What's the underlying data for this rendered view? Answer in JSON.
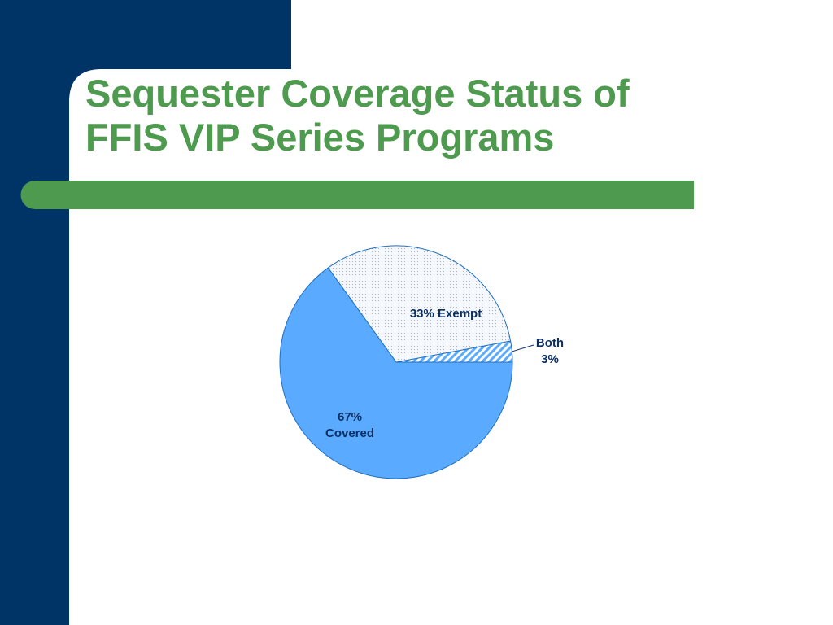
{
  "chart_data": {
    "type": "pie",
    "title": "Sequester Coverage Status of\nFFIS VIP Series Programs",
    "categories": [
      "Both",
      "Exempt",
      "Covered"
    ],
    "values": [
      3,
      33,
      67
    ],
    "value_labels": [
      "Both\n3%",
      "33% Exempt",
      "67%\nCovered"
    ],
    "colors": [
      "#5aabff",
      "#5aabff",
      "#5aabff"
    ]
  }
}
